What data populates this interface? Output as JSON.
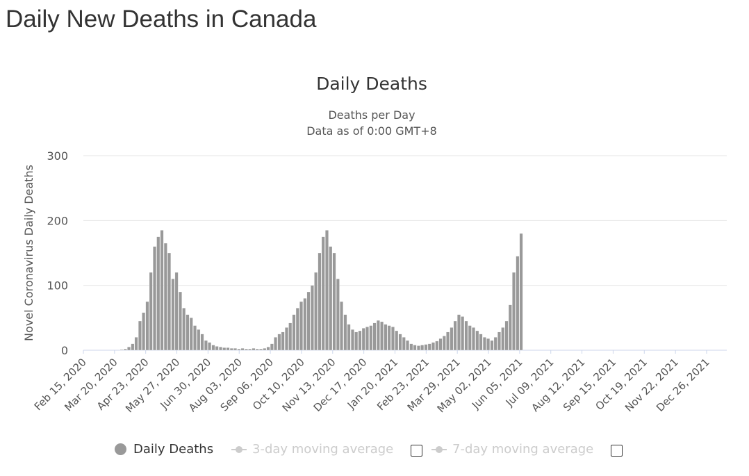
{
  "page": {
    "title": "Daily New Deaths in Canada"
  },
  "chart_data": {
    "type": "bar",
    "title": "Daily Deaths",
    "subtitle_lines": [
      "Deaths per Day",
      "Data as of 0:00 GMT+8"
    ],
    "ylabel": "Novel Coronavirus Daily Deaths",
    "xlabel": "",
    "ylim": [
      0,
      300
    ],
    "yticks": [
      0,
      100,
      200,
      300
    ],
    "grid": true,
    "x_start": "Feb 15, 2020",
    "x_end": "Jan 17, 2022",
    "xtick_labels": [
      "Feb 15, 2020",
      "Mar 20, 2020",
      "Apr 23, 2020",
      "May 27, 2020",
      "Jun 30, 2020",
      "Aug 03, 2020",
      "Sep 06, 2020",
      "Oct 10, 2020",
      "Nov 13, 2020",
      "Dec 17, 2020",
      "Jan 20, 2021",
      "Feb 23, 2021",
      "Mar 29, 2021",
      "May 02, 2021",
      "Jun 05, 2021",
      "Jul 09, 2021",
      "Aug 12, 2021",
      "Sep 15, 2021",
      "Oct 19, 2021",
      "Nov 22, 2021",
      "Dec 26, 2021"
    ],
    "series": [
      {
        "name": "Daily Deaths",
        "color": "#999999",
        "period_days": 4,
        "values": [
          0,
          0,
          0,
          0,
          0,
          0,
          0,
          0,
          0,
          0,
          1,
          2,
          5,
          10,
          20,
          45,
          58,
          75,
          120,
          160,
          175,
          185,
          165,
          150,
          110,
          120,
          90,
          65,
          55,
          50,
          38,
          32,
          25,
          15,
          12,
          8,
          6,
          5,
          4,
          4,
          3,
          3,
          2,
          3,
          2,
          2,
          3,
          2,
          2,
          3,
          5,
          10,
          20,
          25,
          28,
          35,
          42,
          55,
          65,
          75,
          80,
          90,
          100,
          120,
          150,
          175,
          185,
          160,
          150,
          110,
          75,
          55,
          40,
          32,
          28,
          30,
          34,
          36,
          38,
          42,
          46,
          44,
          40,
          38,
          36,
          30,
          25,
          20,
          15,
          10,
          8,
          7,
          8,
          9,
          10,
          12,
          14,
          18,
          22,
          28,
          35,
          45,
          55,
          52,
          45,
          38,
          35,
          30,
          25,
          20,
          18,
          15,
          20,
          28,
          35,
          45,
          70,
          120,
          145,
          180
        ]
      },
      {
        "name": "3-day moving average",
        "visible": false,
        "color": "#cccccc"
      },
      {
        "name": "7-day moving average",
        "visible": false,
        "color": "#cccccc"
      }
    ],
    "legend": {
      "position": "bottom"
    }
  }
}
